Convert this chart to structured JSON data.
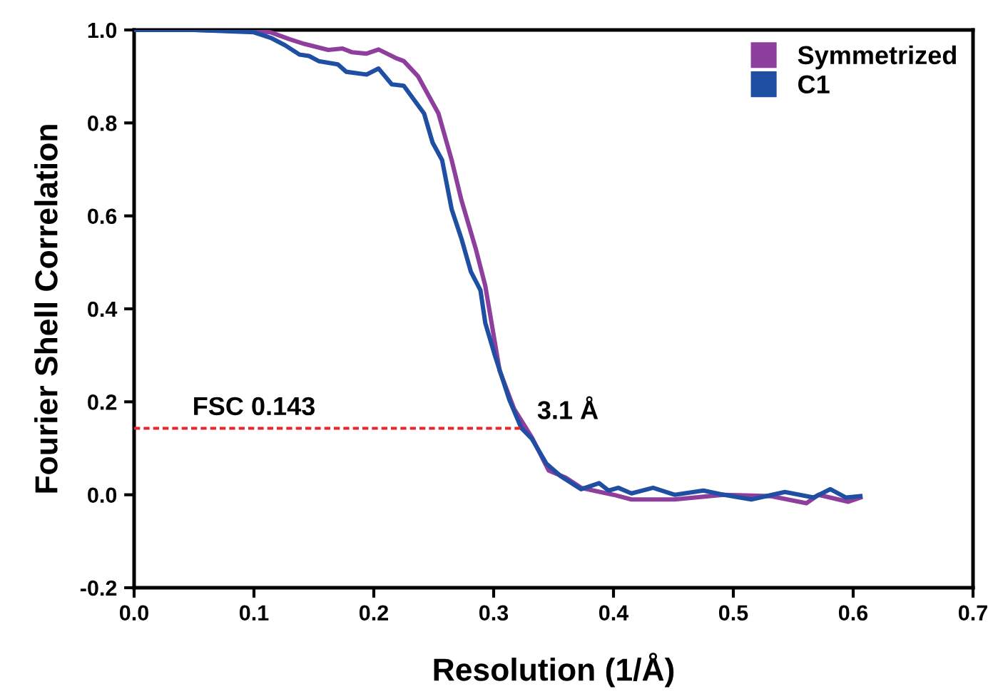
{
  "chart_data": {
    "type": "line",
    "xlabel": "Resolution (1/Å)",
    "ylabel": "Fourier Shell Correlation",
    "xlim": [
      0,
      0.7
    ],
    "ylim": [
      -0.2,
      1.0
    ],
    "xticks": [
      {
        "value": 0,
        "label": "0.0"
      },
      {
        "value": 0.1,
        "label": "0.1"
      },
      {
        "value": 0.2,
        "label": "0.2"
      },
      {
        "value": 0.3,
        "label": "0.3"
      },
      {
        "value": 0.4,
        "label": "0.4"
      },
      {
        "value": 0.5,
        "label": "0.5"
      },
      {
        "value": 0.6,
        "label": "0.6"
      },
      {
        "value": 0.7,
        "label": "0.7"
      }
    ],
    "yticks": [
      {
        "value": -0.2,
        "label": "-0.2"
      },
      {
        "value": 0,
        "label": "0.0"
      },
      {
        "value": 0.2,
        "label": "0.2"
      },
      {
        "value": 0.4,
        "label": "0.4"
      },
      {
        "value": 0.6,
        "label": "0.6"
      },
      {
        "value": 0.8,
        "label": "0.8"
      },
      {
        "value": 1.0,
        "label": "1.0"
      }
    ],
    "grid": false,
    "legend": "top right",
    "marker": "none",
    "line_style": "solid",
    "series": [
      {
        "name": "Symmetrized",
        "color": "#8e3f9e",
        "x": [
          0,
          0.05,
          0.1,
          0.114,
          0.13,
          0.142,
          0.162,
          0.174,
          0.182,
          0.194,
          0.204,
          0.218,
          0.225,
          0.237,
          0.254,
          0.265,
          0.273,
          0.285,
          0.293,
          0.305,
          0.317,
          0.332,
          0.346,
          0.36,
          0.373,
          0.4,
          0.415,
          0.451,
          0.492,
          0.531,
          0.561,
          0.571,
          0.596,
          0.606
        ],
        "values": [
          1.0,
          1.0,
          0.997,
          0.995,
          0.98,
          0.97,
          0.957,
          0.96,
          0.952,
          0.949,
          0.958,
          0.94,
          0.933,
          0.9,
          0.82,
          0.72,
          0.635,
          0.53,
          0.45,
          0.267,
          0.185,
          0.123,
          0.052,
          0.037,
          0.015,
          0.0,
          -0.01,
          -0.01,
          0.0,
          -0.003,
          -0.018,
          0.0,
          -0.015,
          -0.006
        ]
      },
      {
        "name": "C1",
        "color": "#1f4fa3",
        "x": [
          0,
          0.05,
          0.1,
          0.114,
          0.126,
          0.138,
          0.146,
          0.154,
          0.17,
          0.177,
          0.194,
          0.204,
          0.215,
          0.225,
          0.242,
          0.249,
          0.257,
          0.265,
          0.273,
          0.281,
          0.289,
          0.293,
          0.301,
          0.313,
          0.323,
          0.332,
          0.344,
          0.356,
          0.373,
          0.388,
          0.396,
          0.404,
          0.415,
          0.433,
          0.451,
          0.475,
          0.492,
          0.515,
          0.543,
          0.567,
          0.581,
          0.594,
          0.606
        ],
        "values": [
          1.0,
          1.0,
          0.995,
          0.983,
          0.967,
          0.947,
          0.944,
          0.933,
          0.926,
          0.91,
          0.904,
          0.917,
          0.883,
          0.88,
          0.82,
          0.758,
          0.72,
          0.614,
          0.552,
          0.48,
          0.44,
          0.37,
          0.3,
          0.205,
          0.144,
          0.12,
          0.067,
          0.04,
          0.012,
          0.025,
          0.009,
          0.015,
          0.003,
          0.015,
          0.0,
          0.009,
          0.0,
          -0.01,
          0.006,
          -0.006,
          0.012,
          -0.006,
          -0.003
        ]
      },
      {
        "type": "line",
        "color": "#e8262b",
        "line_style": "dashed",
        "x": [
          0,
          0.323
        ],
        "values": [
          0.143,
          0.143
        ]
      }
    ],
    "annotations": [
      {
        "text": "FSC 0.143",
        "x": 0.1,
        "y": 0.143
      },
      {
        "text": "3.1 Å",
        "x": 0.323,
        "y": 0.143
      }
    ]
  }
}
